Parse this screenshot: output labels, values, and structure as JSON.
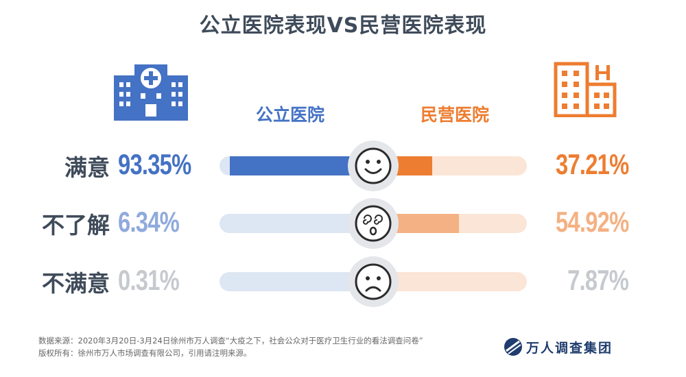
{
  "title": "公立医院表现VS民营医院表现",
  "columns": {
    "public": {
      "label": "公立医院",
      "color": "#4472c4"
    },
    "private": {
      "label": "民营医院",
      "color": "#ed7d31"
    }
  },
  "icons": {
    "public": "hospital-building-cross-icon",
    "private": "hospital-building-h-icon",
    "satisfied": "smiley-face-icon",
    "unsure": "dizzy-face-icon",
    "dissatisfied": "sad-face-icon"
  },
  "rows": [
    {
      "label": "满意",
      "public_text": "93.35%",
      "private_text": "37.21%"
    },
    {
      "label": "不了解",
      "public_text": "6.34%",
      "private_text": "54.92%"
    },
    {
      "label": "不满意",
      "public_text": "0.31%",
      "private_text": "7.87%"
    }
  ],
  "chart_data": {
    "type": "bar",
    "title": "公立医院表现VS民营医院表现",
    "categories": [
      "满意",
      "不了解",
      "不满意"
    ],
    "series": [
      {
        "name": "公立医院",
        "values": [
          93.35,
          6.34,
          0.31
        ]
      },
      {
        "name": "民营医院",
        "values": [
          37.21,
          54.92,
          7.87
        ]
      }
    ],
    "unit": "%",
    "ylim": [
      0,
      100
    ]
  },
  "footer": {
    "source": "数据来源：2020年3月20日-3月24日徐州市万人调查“大疫之下，社会公众对于医疗卫生行业的看法调查问卷”",
    "copyright": "版权所有：徐州市万人市场调查有限公司，引用请注明来源。"
  },
  "brand": {
    "name": "万人调查集团"
  }
}
